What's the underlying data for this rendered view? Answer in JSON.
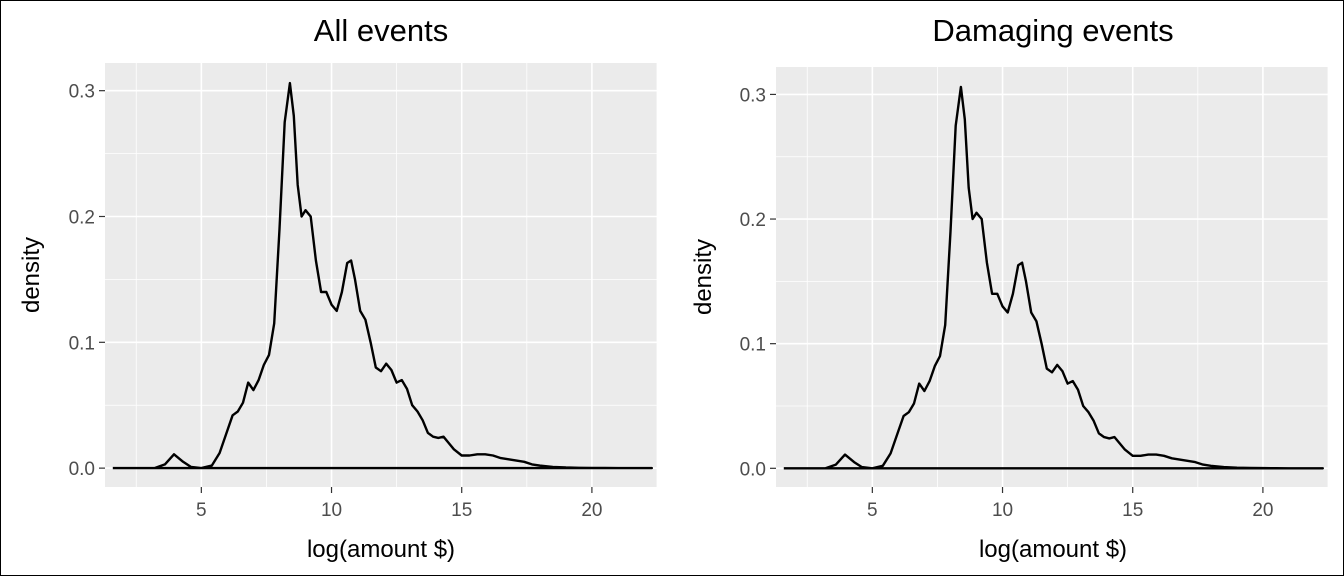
{
  "chart_data": [
    {
      "type": "line",
      "title": "All events",
      "xlabel": "log(amount $)",
      "ylabel": "density",
      "xlim": [
        1.3,
        22.5
      ],
      "ylim": [
        -0.015,
        0.322
      ],
      "xticks": [
        5,
        10,
        15,
        20
      ],
      "xtick_labels": [
        "5",
        "10",
        "15",
        "20"
      ],
      "yticks": [
        0.0,
        0.1,
        0.2,
        0.3
      ],
      "ytick_labels": [
        "0.0",
        "0.1",
        "0.2",
        "0.3"
      ],
      "grid": true,
      "legend": "none",
      "series": [
        {
          "x": [
            1.6,
            3.2,
            3.6,
            3.95,
            4.3,
            4.6,
            5.0,
            5.4,
            5.7,
            6.0,
            6.2,
            6.4,
            6.6,
            6.8,
            7.0,
            7.2,
            7.4,
            7.6,
            7.8,
            8.0,
            8.2,
            8.4,
            8.55,
            8.7,
            8.85,
            9.0,
            9.2,
            9.4,
            9.6,
            9.8,
            10.0,
            10.2,
            10.4,
            10.6,
            10.75,
            10.9,
            11.1,
            11.3,
            11.5,
            11.7,
            11.9,
            12.1,
            12.3,
            12.5,
            12.7,
            12.9,
            13.1,
            13.3,
            13.5,
            13.7,
            13.9,
            14.1,
            14.3,
            14.5,
            14.7,
            15.0,
            15.3,
            15.6,
            15.9,
            16.2,
            16.5,
            16.8,
            17.1,
            17.4,
            17.7,
            18.0,
            18.5,
            19.0,
            19.5,
            20.0,
            20.5,
            21.0,
            21.5,
            22.3
          ],
          "y": [
            0.0,
            0.0,
            0.003,
            0.011,
            0.005,
            0.001,
            0.0,
            0.002,
            0.012,
            0.03,
            0.042,
            0.045,
            0.052,
            0.068,
            0.062,
            0.07,
            0.082,
            0.09,
            0.115,
            0.19,
            0.275,
            0.306,
            0.28,
            0.225,
            0.2,
            0.205,
            0.2,
            0.165,
            0.14,
            0.14,
            0.13,
            0.125,
            0.14,
            0.163,
            0.165,
            0.15,
            0.125,
            0.118,
            0.1,
            0.08,
            0.077,
            0.083,
            0.078,
            0.068,
            0.07,
            0.063,
            0.05,
            0.045,
            0.038,
            0.028,
            0.025,
            0.024,
            0.025,
            0.02,
            0.015,
            0.01,
            0.01,
            0.011,
            0.011,
            0.01,
            0.008,
            0.007,
            0.006,
            0.005,
            0.003,
            0.002,
            0.001,
            0.0005,
            0.0003,
            0.0002,
            0.0001,
            0.0,
            0.0,
            0.0
          ]
        }
      ]
    },
    {
      "type": "line",
      "title": "Damaging events",
      "xlabel": "log(amount $)",
      "ylabel": "density",
      "xlim": [
        1.3,
        22.5
      ],
      "ylim": [
        -0.015,
        0.322
      ],
      "xticks": [
        5,
        10,
        15,
        20
      ],
      "xtick_labels": [
        "5",
        "10",
        "15",
        "20"
      ],
      "yticks": [
        0.0,
        0.1,
        0.2,
        0.3
      ],
      "ytick_labels": [
        "0.0",
        "0.1",
        "0.2",
        "0.3"
      ],
      "grid": true,
      "legend": "none",
      "series": [
        {
          "x": [
            1.6,
            3.2,
            3.6,
            3.95,
            4.3,
            4.6,
            5.0,
            5.4,
            5.7,
            6.0,
            6.2,
            6.4,
            6.6,
            6.8,
            7.0,
            7.2,
            7.4,
            7.6,
            7.8,
            8.0,
            8.2,
            8.4,
            8.55,
            8.7,
            8.85,
            9.0,
            9.2,
            9.4,
            9.6,
            9.8,
            10.0,
            10.2,
            10.4,
            10.6,
            10.75,
            10.9,
            11.1,
            11.3,
            11.5,
            11.7,
            11.9,
            12.1,
            12.3,
            12.5,
            12.7,
            12.9,
            13.1,
            13.3,
            13.5,
            13.7,
            13.9,
            14.1,
            14.3,
            14.5,
            14.7,
            15.0,
            15.3,
            15.6,
            15.9,
            16.2,
            16.5,
            16.8,
            17.1,
            17.4,
            17.7,
            18.0,
            18.5,
            19.0,
            19.5,
            20.0,
            20.5,
            21.0,
            21.5,
            22.3
          ],
          "y": [
            0.0,
            0.0,
            0.003,
            0.011,
            0.005,
            0.001,
            0.0,
            0.002,
            0.012,
            0.03,
            0.042,
            0.045,
            0.052,
            0.068,
            0.062,
            0.07,
            0.082,
            0.09,
            0.115,
            0.19,
            0.275,
            0.306,
            0.28,
            0.225,
            0.2,
            0.205,
            0.2,
            0.165,
            0.14,
            0.14,
            0.13,
            0.125,
            0.14,
            0.163,
            0.165,
            0.15,
            0.125,
            0.118,
            0.1,
            0.08,
            0.077,
            0.083,
            0.078,
            0.068,
            0.07,
            0.063,
            0.05,
            0.045,
            0.038,
            0.028,
            0.025,
            0.024,
            0.025,
            0.02,
            0.015,
            0.01,
            0.01,
            0.011,
            0.011,
            0.01,
            0.008,
            0.007,
            0.006,
            0.005,
            0.003,
            0.002,
            0.001,
            0.0005,
            0.0003,
            0.0002,
            0.0001,
            0.0,
            0.0,
            0.0
          ]
        }
      ]
    }
  ],
  "style": {
    "panel_background": "#ebebeb",
    "grid_color": "#ffffff",
    "line_color": "#000000",
    "tick_label_color": "#4d4d4d"
  }
}
